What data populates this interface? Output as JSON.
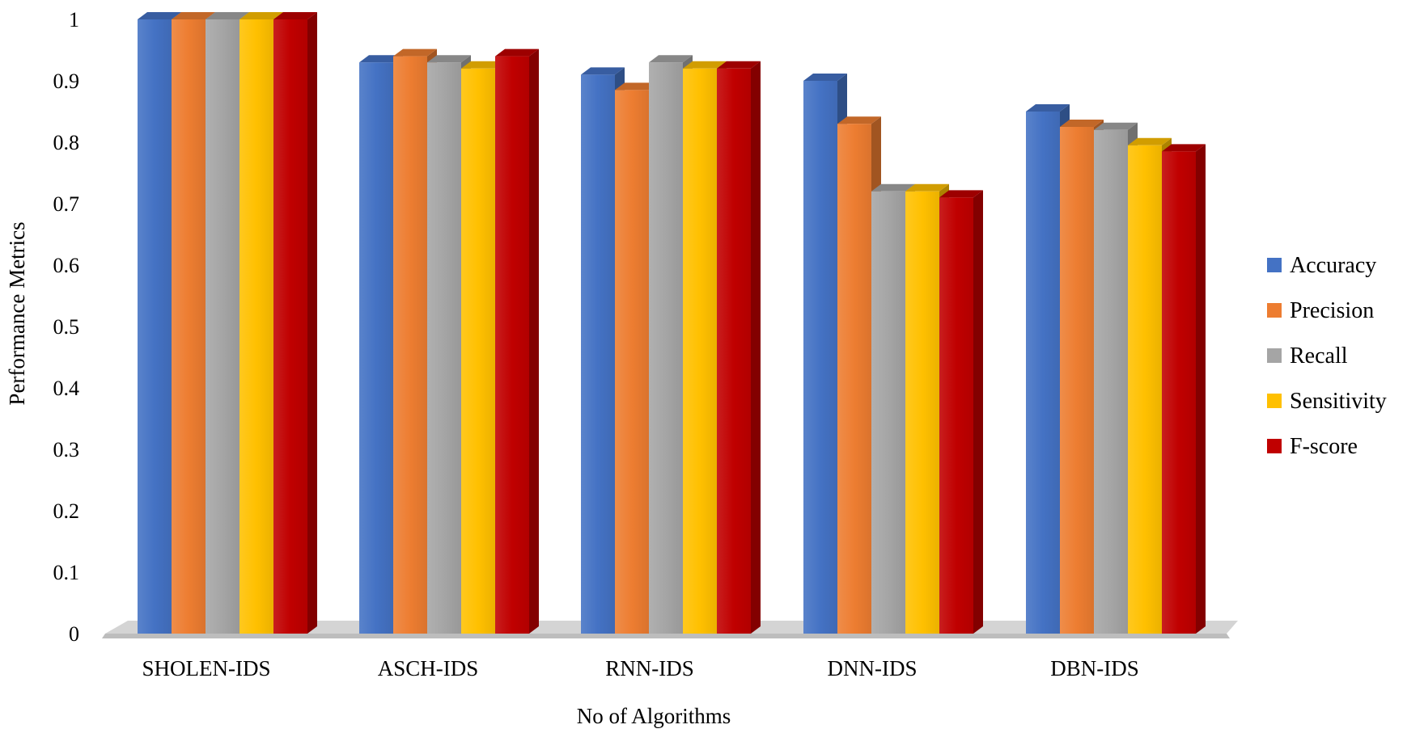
{
  "chart_data": {
    "type": "bar",
    "style": "3d-clustered-column",
    "title": "",
    "xlabel": "No of Algorithms",
    "ylabel": "Performance Metrics",
    "ylim": [
      0,
      1
    ],
    "yticks": [
      "0",
      "0.1",
      "0.2",
      "0.3",
      "0.4",
      "0.5",
      "0.6",
      "0.7",
      "0.8",
      "0.9",
      "1"
    ],
    "grid": false,
    "legend_position": "right",
    "categories": [
      "SHOLEN-IDS",
      "ASCH-IDS",
      "RNN-IDS",
      "DNN-IDS",
      "DBN-IDS"
    ],
    "series": [
      {
        "name": "Accuracy",
        "color": "#4472C4",
        "values": [
          1.0,
          0.93,
          0.91,
          0.9,
          0.85
        ]
      },
      {
        "name": "Precision",
        "color": "#ED7D31",
        "values": [
          1.0,
          0.94,
          0.885,
          0.83,
          0.825
        ]
      },
      {
        "name": "Recall",
        "color": "#A5A5A5",
        "values": [
          1.0,
          0.93,
          0.93,
          0.72,
          0.82
        ]
      },
      {
        "name": "Sensitivity",
        "color": "#FFC000",
        "values": [
          1.0,
          0.92,
          0.92,
          0.72,
          0.795
        ]
      },
      {
        "name": "F-score",
        "color": "#C00000",
        "values": [
          1.0,
          0.94,
          0.92,
          0.71,
          0.785
        ]
      }
    ]
  }
}
